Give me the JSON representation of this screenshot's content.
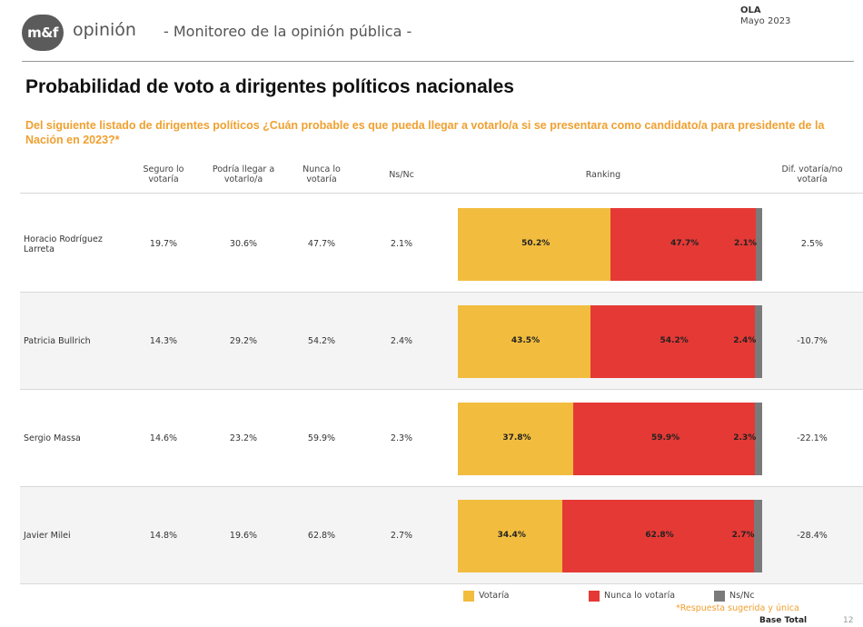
{
  "header": {
    "logo_mark": "m&f",
    "logo_word": "opinión",
    "subtitle": "- Monitoreo de la opinión pública -",
    "ola_label": "OLA",
    "ola_date": "Mayo 2023"
  },
  "title": "Probabilidad de voto a dirigentes políticos nacionales",
  "question": "Del siguiente listado de dirigentes políticos ¿Cuán probable es que pueda llegar a votarlo/a si se presentara como candidato/a para presidente de la Nación en 2023?*",
  "columns": {
    "seguro": "Seguro lo votaría",
    "podria": "Podría llegar a votarlo/a",
    "nunca": "Nunca lo votaría",
    "nsnc": "Ns/Nc",
    "ranking": "Ranking",
    "dif": "Dif. votaría/no votaría"
  },
  "rows": [
    {
      "name": "Horacio Rodríguez Larreta",
      "seguro": "19.7%",
      "podria": "30.6%",
      "nunca": "47.7%",
      "nsnc": "2.1%",
      "dif": "2.5%"
    },
    {
      "name": "Patricia Bullrich",
      "seguro": "14.3%",
      "podria": "29.2%",
      "nunca": "54.2%",
      "nsnc": "2.4%",
      "dif": "-10.7%"
    },
    {
      "name": "Sergio Massa",
      "seguro": "14.6%",
      "podria": "23.2%",
      "nunca": "59.9%",
      "nsnc": "2.3%",
      "dif": "-22.1%"
    },
    {
      "name": "Javier Milei",
      "seguro": "14.8%",
      "podria": "19.6%",
      "nunca": "62.8%",
      "nsnc": "2.7%",
      "dif": "-28.4%"
    }
  ],
  "chart_data": {
    "type": "bar",
    "orientation": "horizontal",
    "stacked": true,
    "categories": [
      "Horacio Rodríguez Larreta",
      "Patricia Bullrich",
      "Sergio Massa",
      "Javier Milei"
    ],
    "series": [
      {
        "name": "Votaría",
        "color": "#f2bd3e",
        "values": [
          50.2,
          43.5,
          37.8,
          34.4
        ],
        "labels": [
          "50.2%",
          "43.5%",
          "37.8%",
          "34.4%"
        ]
      },
      {
        "name": "Nunca lo votaría",
        "color": "#e53935",
        "values": [
          47.7,
          54.2,
          59.9,
          62.8
        ],
        "labels": [
          "47.7%",
          "54.2%",
          "59.9%",
          "62.8%"
        ]
      },
      {
        "name": "Ns/Nc",
        "color": "#7a7a7a",
        "values": [
          2.1,
          2.4,
          2.3,
          2.7
        ],
        "labels": [
          "2.1%",
          "2.4%",
          "2.3%",
          "2.7%"
        ]
      }
    ],
    "xlim": [
      0,
      100
    ]
  },
  "legend": {
    "votaria": "Votaría",
    "nunca": "Nunca lo votaría",
    "nsnc": "Ns/Nc"
  },
  "footnote": "*Respuesta sugerida y única",
  "base": "Base Total",
  "page_number": "12",
  "colors": {
    "accent_orange": "#f0a030",
    "votaria": "#f2bd3e",
    "nunca": "#e53935",
    "nsnc": "#7a7a7a",
    "row_alt": "#f4f4f4"
  }
}
